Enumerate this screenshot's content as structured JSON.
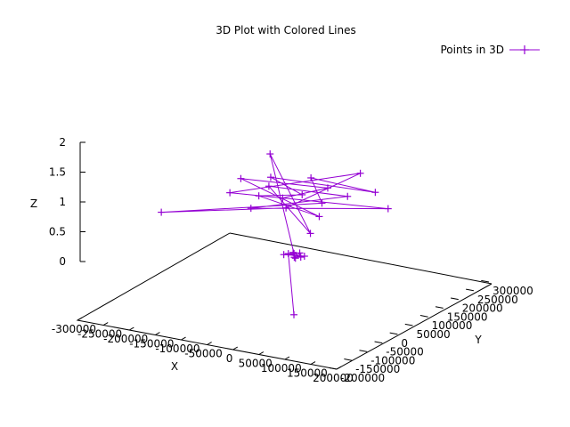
{
  "chart_data": {
    "type": "line",
    "title": "3D Plot with Colored Lines",
    "xlabel": "X",
    "ylabel": "Y",
    "zlabel": "Z",
    "xlim": [
      -300000,
      200000
    ],
    "ylim": [
      -200000,
      300000
    ],
    "zlim": [
      0,
      2
    ],
    "x_ticks": [
      "-300000",
      "-250000",
      "-200000",
      "-150000",
      "-100000",
      "-50000",
      "0",
      "50000",
      "100000",
      "150000",
      "200000"
    ],
    "y_ticks": [
      "-200000",
      "-150000",
      "-100000",
      "-50000",
      "0",
      "50000",
      "100000",
      "150000",
      "200000",
      "250000",
      "300000"
    ],
    "z_ticks": [
      "0",
      "0.5",
      "1",
      "1.5",
      "2"
    ],
    "legend_position": "top-right",
    "series": [
      {
        "name": "Points in 3D",
        "color": "#9400d3",
        "marker": "plus",
        "points": [
          [
            0,
            0,
            0
          ],
          [
            -12000,
            2000,
            1
          ],
          [
            15000,
            -3000,
            1
          ],
          [
            -8000,
            11000,
            1
          ],
          [
            6000,
            -9000,
            1
          ],
          [
            18000,
            4000,
            1
          ],
          [
            -16000,
            -6000,
            1
          ],
          [
            3000,
            14000,
            1
          ],
          [
            10000,
            -12000,
            1
          ],
          [
            -4000,
            7000,
            1
          ],
          [
            -140000,
            160000,
            2
          ],
          [
            120000,
            -150000,
            2
          ],
          [
            -60000,
            20000,
            2
          ],
          [
            80000,
            40000,
            2
          ],
          [
            -30000,
            -90000,
            2
          ],
          [
            170000,
            20000,
            2
          ],
          [
            -100000,
            -40000,
            2
          ],
          [
            40000,
            150000,
            2
          ],
          [
            20000,
            -60000,
            2
          ],
          [
            -150000,
            -180000,
            2
          ],
          [
            60000,
            -10000,
            2
          ],
          [
            -20000,
            90000,
            2
          ],
          [
            110000,
            80000,
            2
          ],
          [
            -80000,
            60000,
            2
          ],
          [
            10000,
            10000,
            2
          ],
          [
            -50000,
            -30000,
            2
          ],
          [
            90000,
            -70000,
            2
          ],
          [
            -120000,
            30000,
            2
          ],
          [
            30000,
            60000,
            2
          ],
          [
            -10000,
            -20000,
            2
          ]
        ]
      }
    ]
  }
}
